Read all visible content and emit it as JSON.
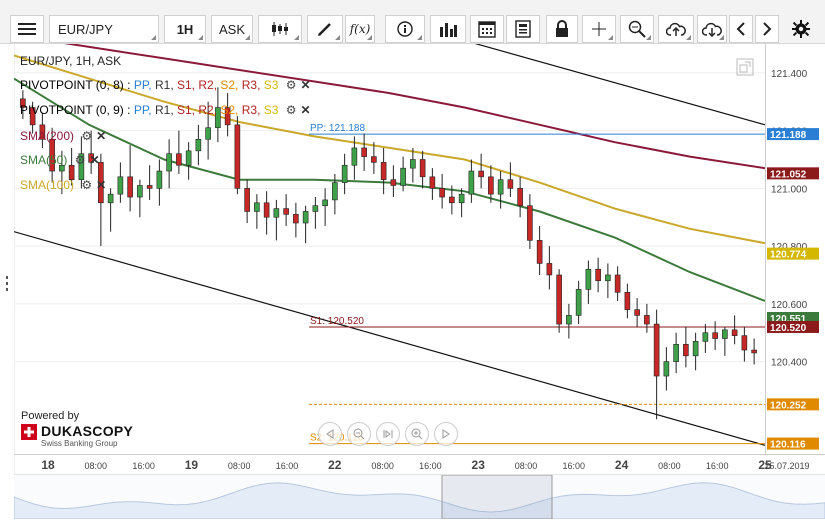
{
  "toolbar": {
    "menu_icon": "hamburger-icon",
    "symbol": "EUR/JPY",
    "timeframe": "1H",
    "side": "ASK",
    "fx_label": "f(x)",
    "icons": [
      "candles-icon",
      "pencil-icon",
      "fx-icon",
      "info-icon",
      "volume-bars-icon",
      "calendar-icon",
      "news-icon",
      "lock-icon",
      "crosshair-icon",
      "zoom-icon",
      "upload-cloud-icon",
      "download-cloud-icon",
      "chevron-left-icon",
      "chevron-right-icon",
      "gear-icon"
    ]
  },
  "legend": {
    "instrument": "EUR/JPY, 1H, ASK",
    "pivot1_name": "PIVOTPOINT (0, 8)",
    "pivot2_name": "PIVOTPOINT (0, 9)",
    "pivot_sep": ":",
    "pivot_items": [
      {
        "label": "PP",
        "color": "#2a7fd4"
      },
      {
        "label": "R1",
        "color": "#333333"
      },
      {
        "label": "S1",
        "color": "#b22222"
      },
      {
        "label": "R2",
        "color": "#b22222"
      },
      {
        "label": "S2",
        "color": "#e08a00"
      },
      {
        "label": "R3",
        "color": "#b22222"
      },
      {
        "label": "S3",
        "color": "#d4b800"
      }
    ],
    "sma200": "SMA(200)",
    "sma50": "SMA(50)",
    "sma100": "SMA(100)"
  },
  "brand": {
    "powered_by": "Powered by",
    "name": "DUKASCOPY",
    "tagline": "Swiss Banking Group"
  },
  "chart_data": {
    "type": "candlestick",
    "title": "EUR/JPY, 1H, ASK",
    "ylim": [
      120.08,
      121.5
    ],
    "y_ticks": [
      120.4,
      120.6,
      120.8,
      121.0,
      121.2,
      121.4
    ],
    "y_tick_labels": [
      "120.400",
      "120.600",
      "120.800",
      "121.000",
      "121.200",
      "121.400"
    ],
    "x_ticks": [
      "18",
      "08:00",
      "16:00",
      "19",
      "08:00",
      "16:00",
      "22",
      "08:00",
      "16:00",
      "23",
      "08:00",
      "16:00",
      "24",
      "08:00",
      "16:00",
      "25"
    ],
    "x_end_label": "25.07.2019",
    "levels": [
      {
        "name": "PP",
        "value": 121.188,
        "label": "PP: 121.188",
        "color": "#2a7fd4"
      },
      {
        "name": "S1",
        "value": 120.52,
        "label": "S1: 120.520",
        "color": "#8b1a1a"
      },
      {
        "name": "S2",
        "value": 120.116,
        "label": "S2: 120.116",
        "color": "#e08a00"
      },
      {
        "name": "S3",
        "value": 120.252,
        "label": "",
        "color": "#e08a00"
      }
    ],
    "badges": [
      {
        "text": "121.188",
        "color": "#2a7fd4"
      },
      {
        "text": "121.052",
        "color": "#8b1a1a"
      },
      {
        "text": "120.774",
        "color": "#d4b800"
      },
      {
        "text": "120.551",
        "color": "#3c7a3c"
      },
      {
        "text": "120.520",
        "color": "#8b1a1a"
      },
      {
        "text": "120.252",
        "color": "#e08a00"
      },
      {
        "text": "120.116",
        "color": "#e08a00"
      }
    ],
    "series": [
      {
        "name": "SMA(200)",
        "color": "#8b1a3a",
        "y": [
          121.53,
          121.49,
          121.45,
          121.41,
          121.37,
          121.33,
          121.28,
          121.22,
          121.16,
          121.11,
          121.07
        ]
      },
      {
        "name": "SMA(100)",
        "color": "#c9a82a",
        "y": [
          121.46,
          121.38,
          121.3,
          121.23,
          121.18,
          121.14,
          121.1,
          121.02,
          120.93,
          120.86,
          120.81
        ]
      },
      {
        "name": "SMA(50)",
        "color": "#3c7a3c",
        "y": [
          121.38,
          121.22,
          121.1,
          121.03,
          121.03,
          121.02,
          120.99,
          120.92,
          120.83,
          120.71,
          120.61
        ]
      }
    ],
    "trendlines": [
      {
        "name": "upper-channel",
        "color": "#111111",
        "from": [
          0,
          121.95
        ],
        "to": [
          1,
          121.22
        ]
      },
      {
        "name": "lower-channel",
        "color": "#111111",
        "from": [
          0,
          120.85
        ],
        "to": [
          1,
          120.11
        ]
      }
    ],
    "candles": [
      [
        121.31,
        121.34,
        121.24,
        121.28
      ],
      [
        121.28,
        121.3,
        121.19,
        121.22
      ],
      [
        121.22,
        121.26,
        121.14,
        121.17
      ],
      [
        121.17,
        121.21,
        121.02,
        121.06
      ],
      [
        121.06,
        121.13,
        120.98,
        121.08
      ],
      [
        121.08,
        121.14,
        121.01,
        121.03
      ],
      [
        121.03,
        121.18,
        121.0,
        121.12
      ],
      [
        121.12,
        121.2,
        121.05,
        121.09
      ],
      [
        121.09,
        121.12,
        120.8,
        120.95
      ],
      [
        120.95,
        121.0,
        120.85,
        120.98
      ],
      [
        120.98,
        121.09,
        120.95,
        121.04
      ],
      [
        121.04,
        121.15,
        120.92,
        120.97
      ],
      [
        120.97,
        121.03,
        120.9,
        121.01
      ],
      [
        121.01,
        121.08,
        120.96,
        121.0
      ],
      [
        121.0,
        121.1,
        120.94,
        121.06
      ],
      [
        121.06,
        121.17,
        121.0,
        121.12
      ],
      [
        121.12,
        121.2,
        121.05,
        121.08
      ],
      [
        121.08,
        121.16,
        121.03,
        121.13
      ],
      [
        121.13,
        121.22,
        121.08,
        121.17
      ],
      [
        121.17,
        121.3,
        121.1,
        121.21
      ],
      [
        121.21,
        121.35,
        121.16,
        121.28
      ],
      [
        121.28,
        121.33,
        121.18,
        121.22
      ],
      [
        121.22,
        121.25,
        120.98,
        121.0
      ],
      [
        121.0,
        121.03,
        120.88,
        120.92
      ],
      [
        120.92,
        120.98,
        120.86,
        120.95
      ],
      [
        120.95,
        120.99,
        120.84,
        120.9
      ],
      [
        120.9,
        120.96,
        120.82,
        120.93
      ],
      [
        120.93,
        120.98,
        120.87,
        120.91
      ],
      [
        120.91,
        120.95,
        120.83,
        120.88
      ],
      [
        120.88,
        120.94,
        120.81,
        120.92
      ],
      [
        120.92,
        120.97,
        120.86,
        120.94
      ],
      [
        120.94,
        121.0,
        120.87,
        120.96
      ],
      [
        120.96,
        121.05,
        120.91,
        121.02
      ],
      [
        121.02,
        121.12,
        120.98,
        121.08
      ],
      [
        121.08,
        121.18,
        121.03,
        121.14
      ],
      [
        121.14,
        121.19,
        121.06,
        121.11
      ],
      [
        121.11,
        121.16,
        121.05,
        121.09
      ],
      [
        121.09,
        121.14,
        120.98,
        121.03
      ],
      [
        121.03,
        121.08,
        120.97,
        121.01
      ],
      [
        121.01,
        121.11,
        120.99,
        121.07
      ],
      [
        121.07,
        121.14,
        121.02,
        121.1
      ],
      [
        121.1,
        121.13,
        121.0,
        121.04
      ],
      [
        121.04,
        121.07,
        120.96,
        121.0
      ],
      [
        121.0,
        121.05,
        120.93,
        120.97
      ],
      [
        120.97,
        121.01,
        120.91,
        120.95
      ],
      [
        120.95,
        121.0,
        120.9,
        120.98
      ],
      [
        120.98,
        121.1,
        120.95,
        121.06
      ],
      [
        121.06,
        121.12,
        121.0,
        121.04
      ],
      [
        121.04,
        121.08,
        120.95,
        120.98
      ],
      [
        120.98,
        121.06,
        120.93,
        121.03
      ],
      [
        121.03,
        121.09,
        120.97,
        121.0
      ],
      [
        121.0,
        121.04,
        120.9,
        120.94
      ],
      [
        120.94,
        120.98,
        120.79,
        120.82
      ],
      [
        120.82,
        120.87,
        120.7,
        120.74
      ],
      [
        120.74,
        120.8,
        120.65,
        120.7
      ],
      [
        120.7,
        120.72,
        120.5,
        120.53
      ],
      [
        120.53,
        120.6,
        120.48,
        120.56
      ],
      [
        120.56,
        120.68,
        120.53,
        120.65
      ],
      [
        120.65,
        120.75,
        120.6,
        120.72
      ],
      [
        120.72,
        120.76,
        120.64,
        120.68
      ],
      [
        120.68,
        120.74,
        120.62,
        120.7
      ],
      [
        120.7,
        120.73,
        120.61,
        120.64
      ],
      [
        120.64,
        120.67,
        120.55,
        120.58
      ],
      [
        120.58,
        120.62,
        120.52,
        120.56
      ],
      [
        120.56,
        120.6,
        120.5,
        120.53
      ],
      [
        120.53,
        120.58,
        120.2,
        120.35
      ],
      [
        120.35,
        120.45,
        120.3,
        120.4
      ],
      [
        120.4,
        120.5,
        120.36,
        120.46
      ],
      [
        120.46,
        120.52,
        120.38,
        120.42
      ],
      [
        120.42,
        120.5,
        120.37,
        120.47
      ],
      [
        120.47,
        120.53,
        120.43,
        120.5
      ],
      [
        120.5,
        120.54,
        120.44,
        120.48
      ],
      [
        120.48,
        120.52,
        120.42,
        120.51
      ],
      [
        120.51,
        120.56,
        120.46,
        120.49
      ],
      [
        120.49,
        120.52,
        120.4,
        120.44
      ],
      [
        120.44,
        120.48,
        120.39,
        120.43
      ]
    ]
  }
}
